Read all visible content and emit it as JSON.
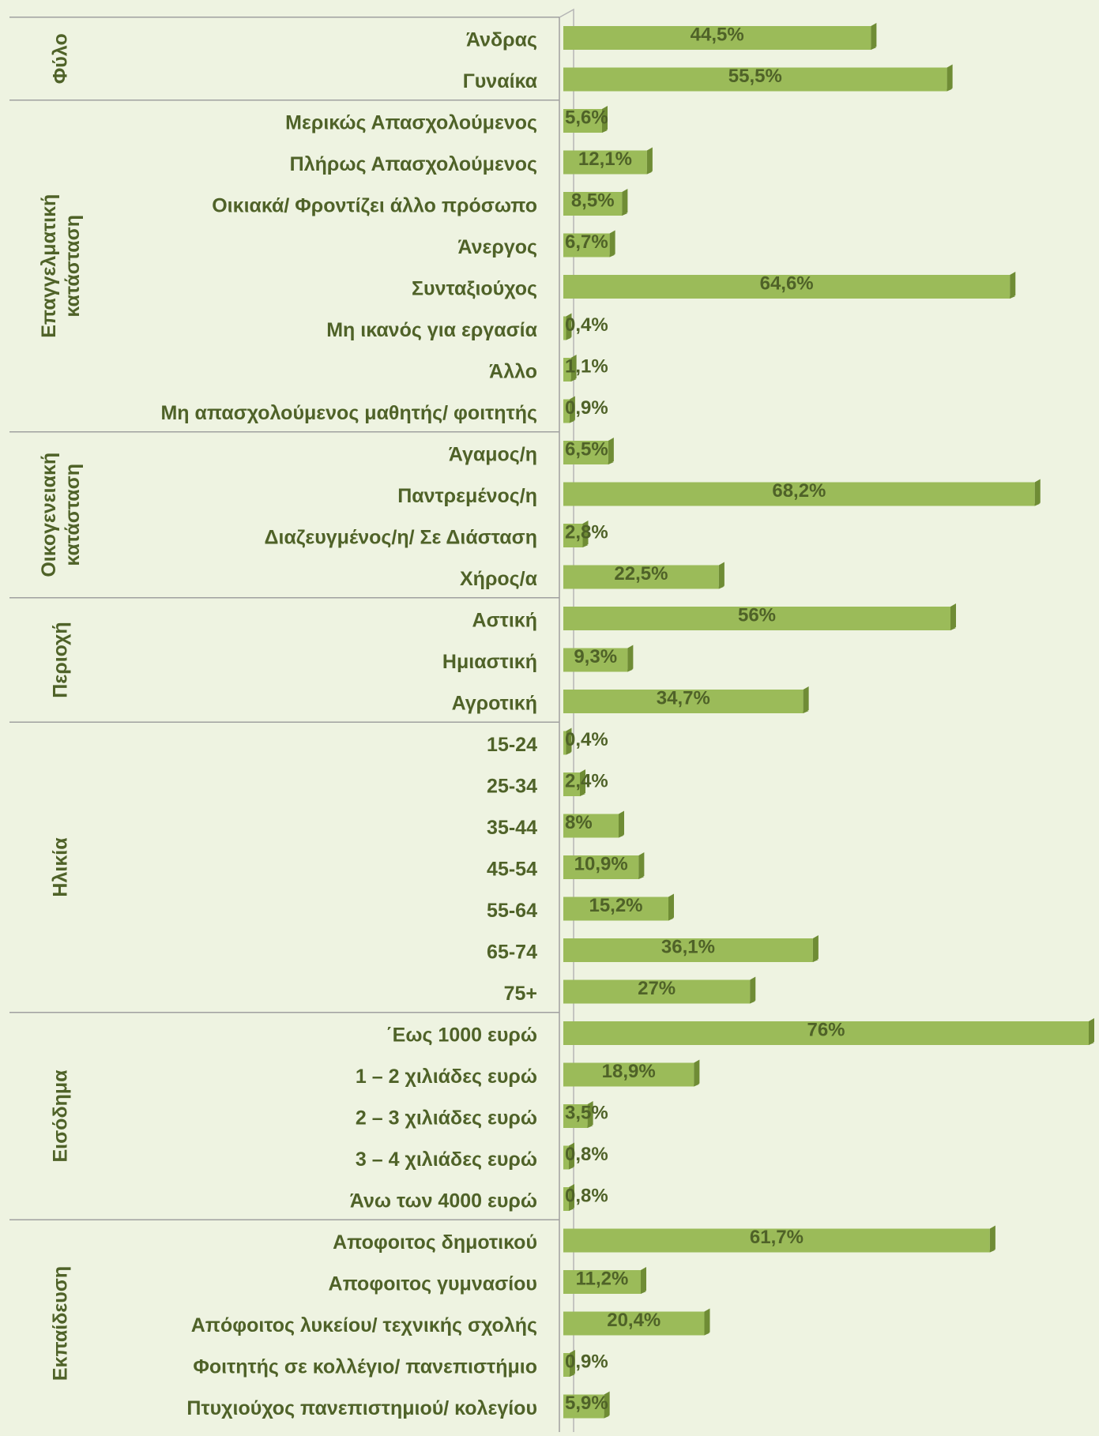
{
  "chart_data": [
    {
      "type": "bar",
      "title": "Φύλο",
      "color": "#9bbb59",
      "xlim": [
        0,
        76
      ],
      "categories": [
        "Άνδρας",
        "Γυναίκα"
      ],
      "values": [
        44.5,
        55.5
      ],
      "value_labels": [
        "44,5%",
        "55,5%"
      ]
    },
    {
      "type": "bar",
      "title": "Επαγγελματική κατάσταση",
      "color": "#9bbb59",
      "xlim": [
        0,
        76
      ],
      "categories": [
        "Μερικώς Απασχολούμενος",
        "Πλήρως Απασχολούμενος",
        "Οικιακά/ Φροντίζει άλλο πρόσωπο",
        "Άνεργος",
        "Συνταξιούχος",
        "Μη ικανός για εργασία",
        "Άλλο",
        "Μη απασχολούμενος μαθητής/ φοιτητής"
      ],
      "values": [
        5.6,
        12.1,
        8.5,
        6.7,
        64.6,
        0.4,
        1.1,
        0.9
      ],
      "value_labels": [
        "5,6%",
        "12,1%",
        "8,5%",
        "6,7%",
        "64,6%",
        "0,4%",
        "1,1%",
        "0,9%"
      ]
    },
    {
      "type": "bar",
      "title": "Οικογενειακή κατάσταση",
      "color": "#9bbb59",
      "xlim": [
        0,
        76
      ],
      "categories": [
        "Άγαμος/η",
        "Παντρεμένος/η",
        "Διαζευγμένος/η/  Σε Διάσταση",
        "Χήρος/α"
      ],
      "values": [
        6.5,
        68.2,
        2.8,
        22.5
      ],
      "value_labels": [
        "6,5%",
        "68,2%",
        "2,8%",
        "22,5%"
      ]
    },
    {
      "type": "bar",
      "title": "Περιοχή",
      "color": "#9bbb59",
      "xlim": [
        0,
        76
      ],
      "categories": [
        "Αστική",
        "Ημιαστική",
        "Αγροτική"
      ],
      "values": [
        56,
        9.3,
        34.7
      ],
      "value_labels": [
        "56%",
        "9,3%",
        "34,7%"
      ]
    },
    {
      "type": "bar",
      "title": "Ηλικία",
      "color": "#9bbb59",
      "xlim": [
        0,
        76
      ],
      "categories": [
        "15-24",
        "25-34",
        "35-44",
        "45-54",
        "55-64",
        "65-74",
        "75+"
      ],
      "values": [
        0.4,
        2.4,
        8,
        10.9,
        15.2,
        36.1,
        27
      ],
      "value_labels": [
        "0,4%",
        "2,4%",
        "8%",
        "10,9%",
        "15,2%",
        "36,1%",
        "27%"
      ]
    },
    {
      "type": "bar",
      "title": "Εισόδημα",
      "color": "#9bbb59",
      "xlim": [
        0,
        76
      ],
      "categories": [
        "΄Εως 1000 ευρώ",
        "1 – 2 χιλιάδες ευρώ",
        "2 – 3 χιλιάδες ευρώ",
        "3 – 4 χιλιάδες ευρώ",
        "Άνω των 4000 ευρώ"
      ],
      "values": [
        76,
        18.9,
        3.5,
        0.8,
        0.8
      ],
      "value_labels": [
        "76%",
        "18,9%",
        "3,5%",
        "0,8%",
        "0,8%"
      ]
    },
    {
      "type": "bar",
      "title": "Εκπαίδευση",
      "color": "#9bbb59",
      "xlim": [
        0,
        76
      ],
      "categories": [
        "Αποφοιτος δημοτικού",
        "Αποφοιτος γυμνασίου",
        "Απόφοιτος λυκείου/ τεχνικής σχολής",
        "Φοιτητής σε κολλέγιο/ πανεπιστήμιο",
        "Πτυχιούχος πανεπιστημιού/ κολεγίου"
      ],
      "values": [
        61.7,
        11.2,
        20.4,
        0.9,
        5.9
      ],
      "value_labels": [
        "61,7%",
        "11,2%",
        "20,4%",
        "0,9%",
        "5,9%"
      ]
    }
  ]
}
